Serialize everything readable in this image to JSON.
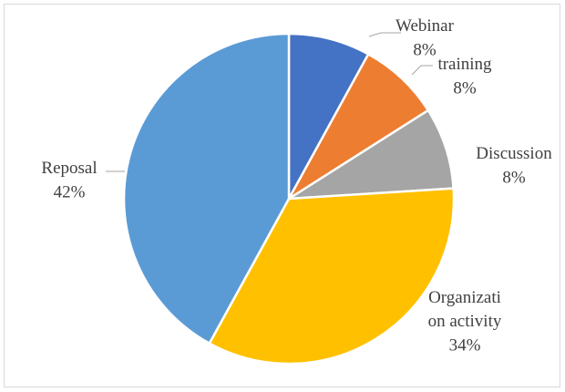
{
  "chart_data": {
    "type": "pie",
    "categories": [
      "Webinar",
      "training",
      "Discussion",
      "Organization activity",
      "Reposal"
    ],
    "values": [
      8,
      8,
      8,
      34,
      42
    ],
    "value_labels": [
      "8%",
      "8%",
      "8%",
      "34%",
      "42%"
    ],
    "colors": [
      "#4472c4",
      "#ed7d31",
      "#a5a5a5",
      "#ffc000",
      "#5b9bd5"
    ]
  }
}
